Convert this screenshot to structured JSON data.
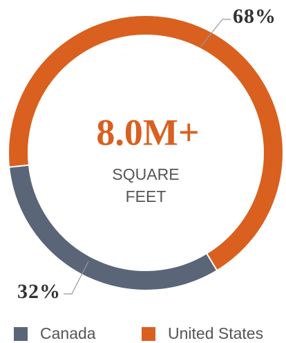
{
  "chart_data": {
    "type": "donut",
    "center_text": "8.0M+",
    "center_subtext": "SQUARE FEET",
    "categories": [
      "Canada",
      "United States"
    ],
    "values": [
      32,
      68
    ],
    "value_labels": [
      "32%",
      "68%"
    ],
    "colors": [
      "#5b6578",
      "#d9601f"
    ],
    "legend": "bottom"
  }
}
